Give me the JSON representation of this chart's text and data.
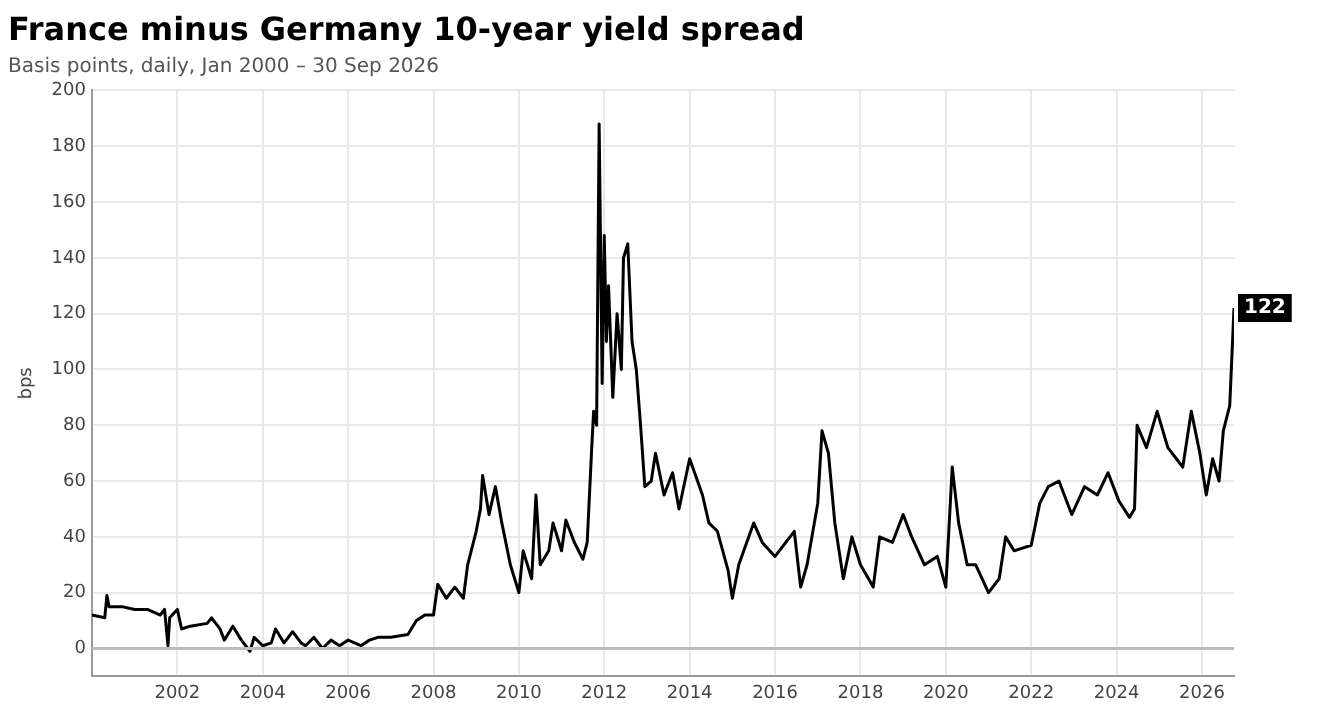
{
  "chart_data": {
    "type": "line",
    "title": "France minus Germany 10-year yield spread",
    "subtitle": "Basis points, daily, Jan 2000 – 30 Sep 2026",
    "ylabel": "bps",
    "x": [
      2000.0,
      2000.3,
      2000.35,
      2000.4,
      2000.7,
      2001.0,
      2001.3,
      2001.6,
      2001.7,
      2001.78,
      2001.82,
      2002.0,
      2002.1,
      2002.3,
      2002.7,
      2002.8,
      2003.0,
      2003.1,
      2003.3,
      2003.5,
      2003.7,
      2003.8,
      2004.0,
      2004.2,
      2004.3,
      2004.5,
      2004.7,
      2004.9,
      2005.0,
      2005.2,
      2005.4,
      2005.6,
      2005.8,
      2006.0,
      2006.3,
      2006.5,
      2006.7,
      2007.0,
      2007.4,
      2007.6,
      2007.8,
      2008.0,
      2008.1,
      2008.3,
      2008.5,
      2008.7,
      2008.8,
      2009.0,
      2009.1,
      2009.15,
      2009.3,
      2009.45,
      2009.6,
      2009.8,
      2010.0,
      2010.1,
      2010.3,
      2010.4,
      2010.5,
      2010.7,
      2010.8,
      2011.0,
      2011.1,
      2011.3,
      2011.5,
      2011.6,
      2011.7,
      2011.75,
      2011.82,
      2011.88,
      2011.95,
      2012.0,
      2012.05,
      2012.1,
      2012.2,
      2012.3,
      2012.4,
      2012.45,
      2012.55,
      2012.65,
      2012.75,
      2012.85,
      2012.95,
      2013.1,
      2013.2,
      2013.4,
      2013.6,
      2013.75,
      2014.0,
      2014.3,
      2014.45,
      2014.65,
      2014.9,
      2015.0,
      2015.15,
      2015.5,
      2015.7,
      2016.0,
      2016.45,
      2016.6,
      2016.75,
      2017.0,
      2017.1,
      2017.25,
      2017.4,
      2017.6,
      2017.8,
      2018.0,
      2018.3,
      2018.45,
      2018.75,
      2019.0,
      2019.2,
      2019.5,
      2019.8,
      2020.0,
      2020.15,
      2020.3,
      2020.5,
      2020.7,
      2021.0,
      2021.25,
      2021.4,
      2021.6,
      2022.0,
      2022.2,
      2022.4,
      2022.65,
      2022.95,
      2023.25,
      2023.55,
      2023.8,
      2024.05,
      2024.3,
      2024.42,
      2024.48,
      2024.7,
      2024.95,
      2025.2,
      2025.4,
      2025.55,
      2025.75,
      2025.95,
      2026.1,
      2026.25,
      2026.4,
      2026.5,
      2026.65,
      2026.75
    ],
    "values": [
      12,
      11,
      19,
      15,
      15,
      14,
      14,
      12,
      14,
      1,
      11,
      14,
      7,
      8,
      9,
      11,
      7,
      3,
      8,
      3,
      -1,
      4,
      1,
      2,
      7,
      2,
      6,
      2,
      1,
      4,
      0,
      3,
      1,
      3,
      1,
      3,
      4,
      4,
      5,
      10,
      12,
      12,
      23,
      18,
      22,
      18,
      30,
      42,
      50,
      62,
      48,
      58,
      45,
      30,
      20,
      35,
      25,
      55,
      30,
      35,
      45,
      35,
      46,
      38,
      32,
      38,
      70,
      85,
      80,
      188,
      95,
      148,
      110,
      130,
      90,
      120,
      100,
      140,
      145,
      110,
      100,
      80,
      58,
      60,
      70,
      55,
      63,
      50,
      68,
      55,
      45,
      42,
      28,
      18,
      30,
      45,
      38,
      33,
      42,
      22,
      30,
      52,
      78,
      70,
      45,
      25,
      40,
      30,
      22,
      40,
      38,
      48,
      40,
      30,
      33,
      22,
      65,
      45,
      30,
      30,
      20,
      25,
      40,
      35,
      37,
      52,
      58,
      60,
      48,
      58,
      55,
      63,
      53,
      47,
      50,
      80,
      72,
      85,
      72,
      68,
      65,
      85,
      70,
      55,
      68,
      60,
      78,
      87,
      122
    ],
    "color": "#000000",
    "xlim": [
      2000,
      2026.75
    ],
    "xticks": [
      2002,
      2004,
      2006,
      2008,
      2010,
      2012,
      2014,
      2016,
      2018,
      2020,
      2022,
      2024,
      2026
    ],
    "ylim": [
      -10,
      200
    ],
    "yticks": [
      0,
      20,
      40,
      60,
      80,
      100,
      120,
      140,
      160,
      180,
      200
    ],
    "grid": true,
    "legend": false,
    "marker": "none",
    "line_style": "solid",
    "ref_lines": [
      {
        "axis": "y",
        "value": 0,
        "color": "#bbbbbb"
      }
    ],
    "annotations": [
      {
        "text": "122",
        "x": 2026.75,
        "y": 122
      }
    ]
  }
}
